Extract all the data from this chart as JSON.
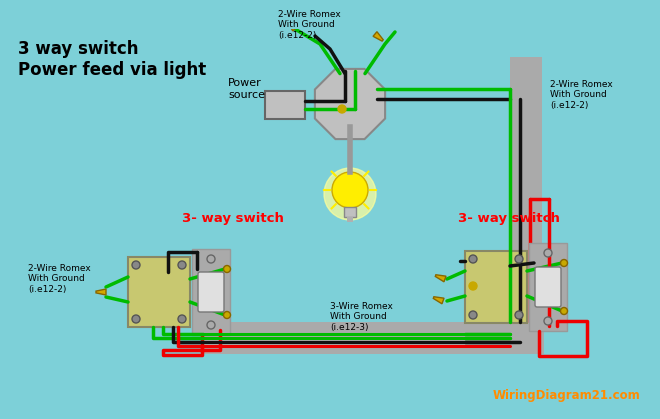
{
  "bg_color": "#7DD0D8",
  "title_text": "3 way switch\nPower feed via light",
  "title_color": "#000000",
  "title_fontsize": 12,
  "watermark": "WiringDiagram21.com",
  "watermark_color": "#FF8C00",
  "label_3way_left": "3- way switch",
  "label_3way_right": "3- way switch",
  "label_3way_color": "#FF0000",
  "label_power": "Power\nsource",
  "label_romex_top": "2-Wire Romex\nWith Ground\n(i.e12-2)",
  "label_romex_right": "2-Wire Romex\nWith Ground\n(i.e12-2)",
  "label_romex_left_bot": "2-Wire Romex\nWith Ground\n(i.e12-2)",
  "label_romex_bot": "3-Wire Romex\nWith Ground\n(i.e12-3)",
  "wire_colors": {
    "black": "#111111",
    "white": "#ffffff",
    "green": "#00BB00",
    "red": "#EE0000",
    "bare": "#D4A800"
  },
  "conduit_color": "#AAAAAA",
  "light_yellow": "#FFEE00",
  "light_glow": "#FFFF99",
  "box_color": "#BBBBBB",
  "junction_color": "#C8C870"
}
